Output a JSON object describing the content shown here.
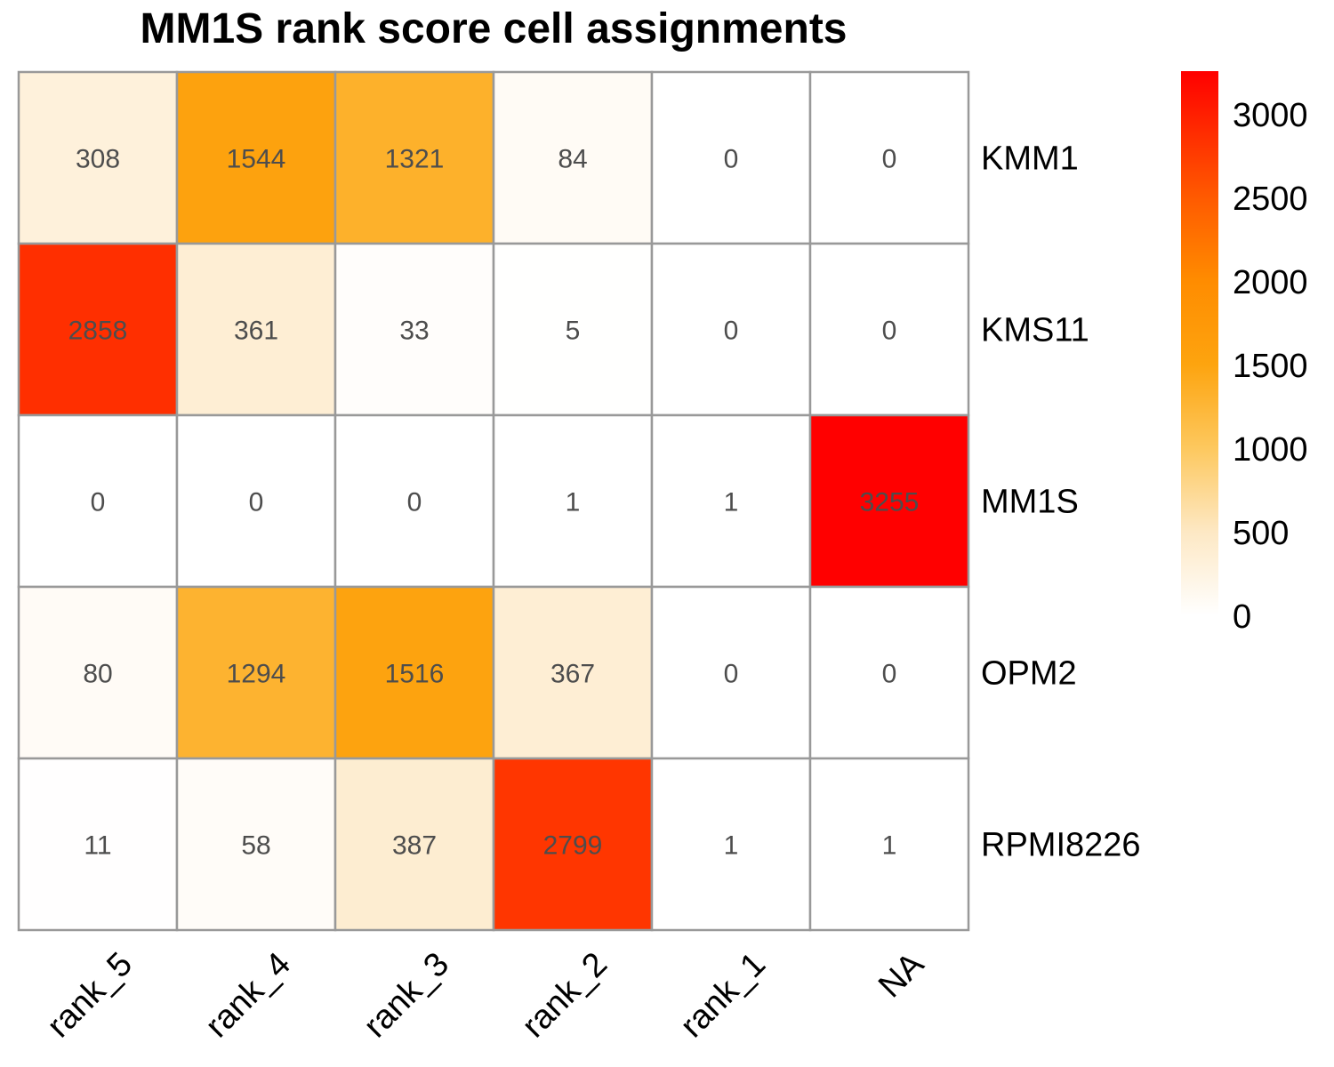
{
  "chart_data": {
    "type": "heatmap",
    "title": "MM1S rank score cell assignments",
    "rows": [
      "KMM1",
      "KMS11",
      "MM1S",
      "OPM2",
      "RPMI8226"
    ],
    "columns": [
      "rank_5",
      "rank_4",
      "rank_3",
      "rank_2",
      "rank_1",
      "NA"
    ],
    "values": [
      [
        308,
        1544,
        1321,
        84,
        0,
        0
      ],
      [
        2858,
        361,
        33,
        5,
        0,
        0
      ],
      [
        0,
        0,
        0,
        1,
        1,
        3255
      ],
      [
        80,
        1294,
        1516,
        367,
        0,
        0
      ],
      [
        11,
        58,
        387,
        2799,
        1,
        1
      ]
    ],
    "color_scale": {
      "min": 0,
      "max": 3255,
      "stops": [
        {
          "value": 0,
          "color": "#ffffff"
        },
        {
          "value": 500,
          "color": "#fde8c4"
        },
        {
          "value": 1000,
          "color": "#fdc85e"
        },
        {
          "value": 1500,
          "color": "#fda40f"
        },
        {
          "value": 2000,
          "color": "#ff8c00"
        },
        {
          "value": 2500,
          "color": "#ff5a00"
        },
        {
          "value": 3255,
          "color": "#ff0000"
        }
      ]
    },
    "legend": {
      "ticks": [
        0,
        500,
        1000,
        1500,
        2000,
        2500,
        3000
      ],
      "position": "right"
    },
    "grid_color": "#999999"
  }
}
